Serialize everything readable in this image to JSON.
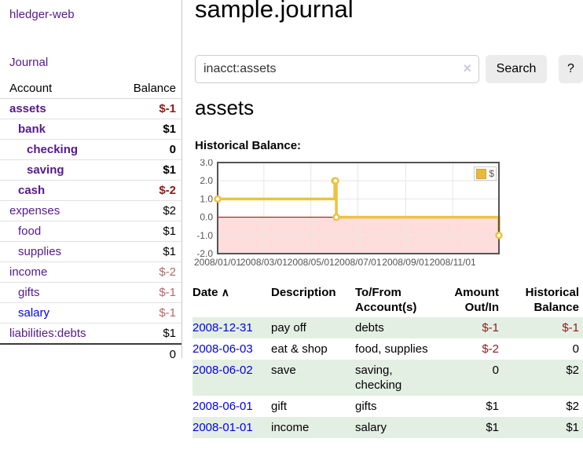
{
  "sidebar": {
    "brand": "hledger-web",
    "nav": {
      "journal": "Journal"
    },
    "accounts": {
      "headers": {
        "account": "Account",
        "balance": "Balance"
      },
      "rows": [
        {
          "account": "assets",
          "balance": "$-1",
          "level": 1,
          "selected": true,
          "balance_class": "neg-strong",
          "link": "visited"
        },
        {
          "account": "bank",
          "balance": "$1",
          "level": 2,
          "selected": true,
          "balance_class": "",
          "link": "visited"
        },
        {
          "account": "checking",
          "balance": "0",
          "level": 3,
          "selected": true,
          "balance_class": "",
          "link": "visited"
        },
        {
          "account": "saving",
          "balance": "$1",
          "level": 3,
          "selected": true,
          "balance_class": "",
          "link": "visited"
        },
        {
          "account": "cash",
          "balance": "$-2",
          "level": 2,
          "selected": true,
          "balance_class": "neg-strong",
          "link": "visited"
        },
        {
          "account": "expenses",
          "balance": "$2",
          "level": 1,
          "selected": false,
          "balance_class": "",
          "link": "visited"
        },
        {
          "account": "food",
          "balance": "$1",
          "level": 2,
          "selected": false,
          "balance_class": "",
          "link": "visited"
        },
        {
          "account": "supplies",
          "balance": "$1",
          "level": 2,
          "selected": false,
          "balance_class": "",
          "link": "visited"
        },
        {
          "account": "income",
          "balance": "$-2",
          "level": 1,
          "selected": false,
          "balance_class": "neg-muted",
          "link": "visited"
        },
        {
          "account": "gifts",
          "balance": "$-1",
          "level": 2,
          "selected": false,
          "balance_class": "neg-muted",
          "link": "visited"
        },
        {
          "account": "salary",
          "balance": "$-1",
          "level": 2,
          "selected": false,
          "balance_class": "neg-muted",
          "link": "unvisited"
        },
        {
          "account": "liabilities:debts",
          "balance": "$1",
          "level": 1,
          "selected": false,
          "balance_class": "",
          "link": "visited"
        }
      ],
      "total": "0"
    }
  },
  "header": {
    "title": "sample.journal"
  },
  "search": {
    "value": "inacct:assets",
    "button": "Search",
    "help_button": "?"
  },
  "icons": {
    "clear_search": "×",
    "sort_ascending": "∧"
  },
  "content": {
    "account_heading": "assets",
    "chart_label": "Historical Balance:"
  },
  "chart_data": {
    "type": "line",
    "title": "Historical Balance",
    "step": true,
    "xlim": [
      "2008-01-01",
      "2008-12-31"
    ],
    "ylim": [
      -2,
      3
    ],
    "y_ticks": [
      3.0,
      2.0,
      1.0,
      0.0,
      -1.0,
      -2.0
    ],
    "x_ticks": [
      {
        "date": "2008-01-01",
        "label": "2008/01/01"
      },
      {
        "date": "2008-03-01",
        "label": "2008/03/01"
      },
      {
        "date": "2008-05-01",
        "label": "2008/05/01"
      },
      {
        "date": "2008-07-01",
        "label": "2008/07/01"
      },
      {
        "date": "2008-09-01",
        "label": "2008/09/01"
      },
      {
        "date": "2008-11-01",
        "label": "2008/11/01"
      }
    ],
    "series": [
      {
        "name": "$",
        "color": "#edc240",
        "points": [
          {
            "date": "2008-01-01",
            "value": 1
          },
          {
            "date": "2008-06-01",
            "value": 2
          },
          {
            "date": "2008-06-02",
            "value": 2
          },
          {
            "date": "2008-06-03",
            "value": 0
          },
          {
            "date": "2008-12-31",
            "value": -1
          }
        ]
      }
    ],
    "legend": {
      "label": "$",
      "position": "top-right"
    },
    "zero_line_color": "#8b0000",
    "negative_region_fill": "#ffdddd",
    "grid_color": "#e6e6e6",
    "border_color": "#545454",
    "axis_text_color": "#545454"
  },
  "register": {
    "headers": {
      "date": "Date",
      "description": "Description",
      "accounts": "To/From Account(s)",
      "amount": "Amount Out/In",
      "balance": "Historical Balance"
    },
    "rows": [
      {
        "date": "2008-12-31",
        "description": "pay off",
        "accounts": "debts",
        "amount": "$-1",
        "balance": "$-1",
        "amount_class": "neg",
        "balance_class": "neg"
      },
      {
        "date": "2008-06-03",
        "description": "eat & shop",
        "accounts": "food, supplies",
        "amount": "$-2",
        "balance": "0",
        "amount_class": "neg",
        "balance_class": ""
      },
      {
        "date": "2008-06-02",
        "description": "save",
        "accounts": "saving, checking",
        "amount": "0",
        "balance": "$2",
        "amount_class": "",
        "balance_class": ""
      },
      {
        "date": "2008-06-01",
        "description": "gift",
        "accounts": "gifts",
        "amount": "$1",
        "balance": "$2",
        "amount_class": "",
        "balance_class": ""
      },
      {
        "date": "2008-01-01",
        "description": "income",
        "accounts": "salary",
        "amount": "$1",
        "balance": "$1",
        "amount_class": "",
        "balance_class": ""
      }
    ]
  },
  "colors": {
    "link_purple": "#551a8b",
    "link_blue": "#0000e6",
    "negative_strong": "#8b1c1c",
    "negative_muted": "#b36a6a",
    "row_highlight_green": "#e4efe4",
    "button_gray": "#ececec",
    "chart_line_gold": "#edc240"
  }
}
